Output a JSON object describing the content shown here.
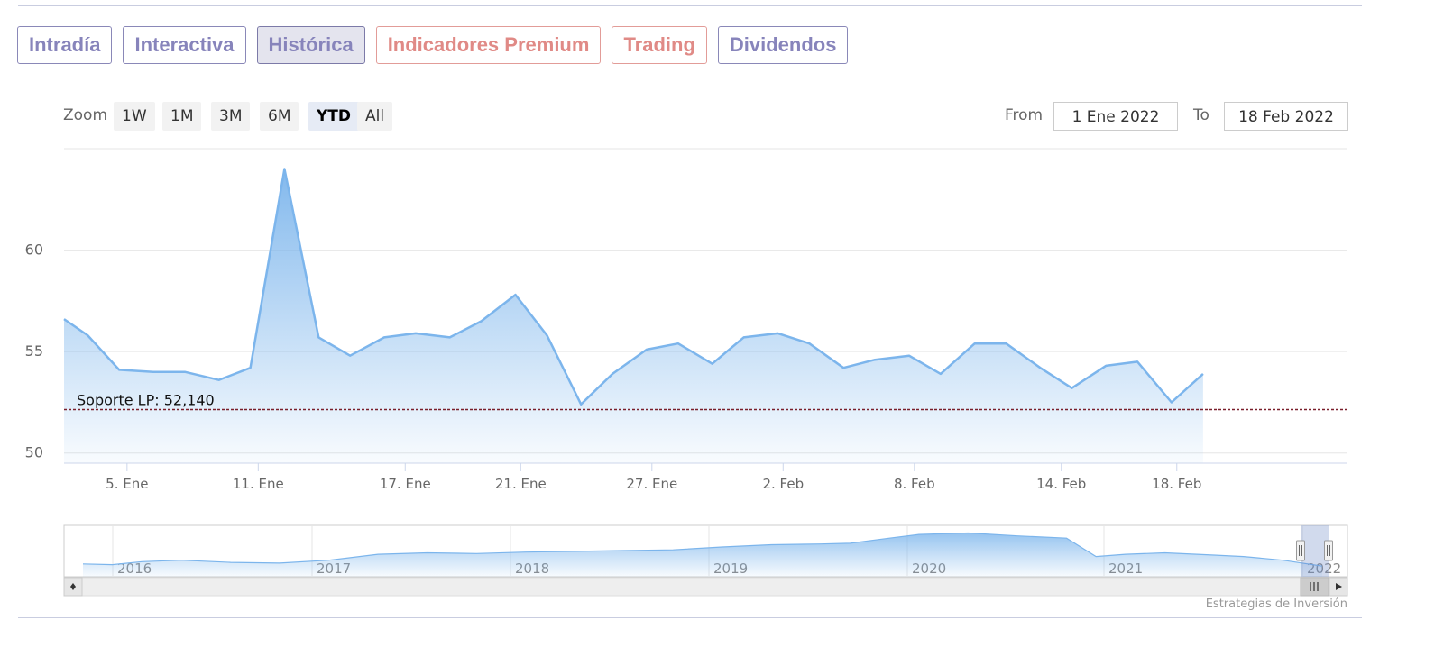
{
  "tabs": [
    {
      "label": "Intradía",
      "kind": "normal"
    },
    {
      "label": "Interactiva",
      "kind": "normal"
    },
    {
      "label": "Histórica",
      "kind": "active"
    },
    {
      "label": "Indicadores Premium",
      "kind": "premium"
    },
    {
      "label": "Trading",
      "kind": "premium"
    },
    {
      "label": "Dividendos",
      "kind": "normal"
    }
  ],
  "range_selector": {
    "zoom_label": "Zoom",
    "buttons": [
      "1W",
      "1M",
      "3M",
      "6M",
      "YTD",
      "All"
    ],
    "selected": "YTD",
    "from_label": "From",
    "from_value": "1 Ene 2022",
    "to_label": "To",
    "to_value": "18 Feb 2022"
  },
  "colors": {
    "line": "#7cb5ec",
    "support_line": "#7a1f2b",
    "tab_text": "#8784bb",
    "premium_text": "#e08a86"
  },
  "chart_data": {
    "type": "area",
    "ylim": [
      49.5,
      65
    ],
    "yticks": [
      50,
      55,
      60
    ],
    "xlim": [
      0,
      48.4
    ],
    "x_ticks": [
      {
        "x": 2.4,
        "label": "5. Ene"
      },
      {
        "x": 7.4,
        "label": "11. Ene"
      },
      {
        "x": 13,
        "label": "17. Ene"
      },
      {
        "x": 17.4,
        "label": "21. Ene"
      },
      {
        "x": 22.4,
        "label": "27. Ene"
      },
      {
        "x": 27.4,
        "label": "2. Feb"
      },
      {
        "x": 32.4,
        "label": "8. Feb"
      },
      {
        "x": 38,
        "label": "14. Feb"
      },
      {
        "x": 42.4,
        "label": "18. Feb"
      }
    ],
    "series": [
      {
        "values": [
          [
            0,
            56.6
          ],
          [
            0.9,
            55.8
          ],
          [
            2.1,
            54.1
          ],
          [
            3.4,
            54.0
          ],
          [
            4.6,
            54.0
          ],
          [
            5.9,
            53.6
          ],
          [
            7.1,
            54.2
          ],
          [
            8.4,
            64.0
          ],
          [
            9.7,
            55.7
          ],
          [
            10.9,
            54.8
          ],
          [
            12.2,
            55.7
          ],
          [
            13.4,
            55.9
          ],
          [
            14.7,
            55.7
          ],
          [
            15.9,
            56.5
          ],
          [
            17.2,
            57.8
          ],
          [
            18.4,
            55.8
          ],
          [
            19.7,
            52.4
          ],
          [
            20.9,
            53.9
          ],
          [
            22.2,
            55.1
          ],
          [
            23.4,
            55.4
          ],
          [
            24.7,
            54.4
          ],
          [
            25.9,
            55.7
          ],
          [
            27.2,
            55.9
          ],
          [
            28.4,
            55.4
          ],
          [
            29.7,
            54.2
          ],
          [
            30.9,
            54.6
          ],
          [
            32.2,
            54.8
          ],
          [
            33.4,
            53.9
          ],
          [
            34.7,
            55.4
          ],
          [
            35.9,
            55.4
          ],
          [
            37.2,
            54.2
          ],
          [
            38.4,
            53.2
          ],
          [
            39.7,
            54.3
          ],
          [
            40.9,
            54.5
          ],
          [
            42.2,
            52.5
          ],
          [
            43.4,
            53.9
          ]
        ]
      }
    ],
    "plot_lines": [
      {
        "label": "Soporte LP: 52,140",
        "value": 52.14,
        "style": "dashed"
      }
    ],
    "navigator": {
      "year_labels": [
        "2016",
        "2017",
        "2018",
        "2019",
        "2020",
        "2021",
        "2022"
      ],
      "profile": [
        [
          0,
          0.45
        ],
        [
          0.3,
          0.44
        ],
        [
          0.6,
          0.48
        ],
        [
          1.0,
          0.5
        ],
        [
          1.5,
          0.47
        ],
        [
          2.0,
          0.46
        ],
        [
          2.5,
          0.5
        ],
        [
          3.0,
          0.58
        ],
        [
          3.5,
          0.6
        ],
        [
          4.0,
          0.59
        ],
        [
          4.5,
          0.61
        ],
        [
          5.0,
          0.62
        ],
        [
          5.5,
          0.63
        ],
        [
          6.0,
          0.64
        ],
        [
          6.5,
          0.68
        ],
        [
          7.0,
          0.71
        ],
        [
          7.5,
          0.72
        ],
        [
          7.8,
          0.73
        ],
        [
          8.2,
          0.8
        ],
        [
          8.5,
          0.85
        ],
        [
          9.0,
          0.87
        ],
        [
          9.5,
          0.83
        ],
        [
          10.0,
          0.8
        ],
        [
          10.3,
          0.55
        ],
        [
          10.6,
          0.58
        ],
        [
          11.0,
          0.6
        ],
        [
          11.5,
          0.57
        ],
        [
          11.8,
          0.55
        ],
        [
          12.2,
          0.5
        ],
        [
          12.6,
          0.42
        ]
      ]
    }
  },
  "credit": "Estrategias de Inversión"
}
